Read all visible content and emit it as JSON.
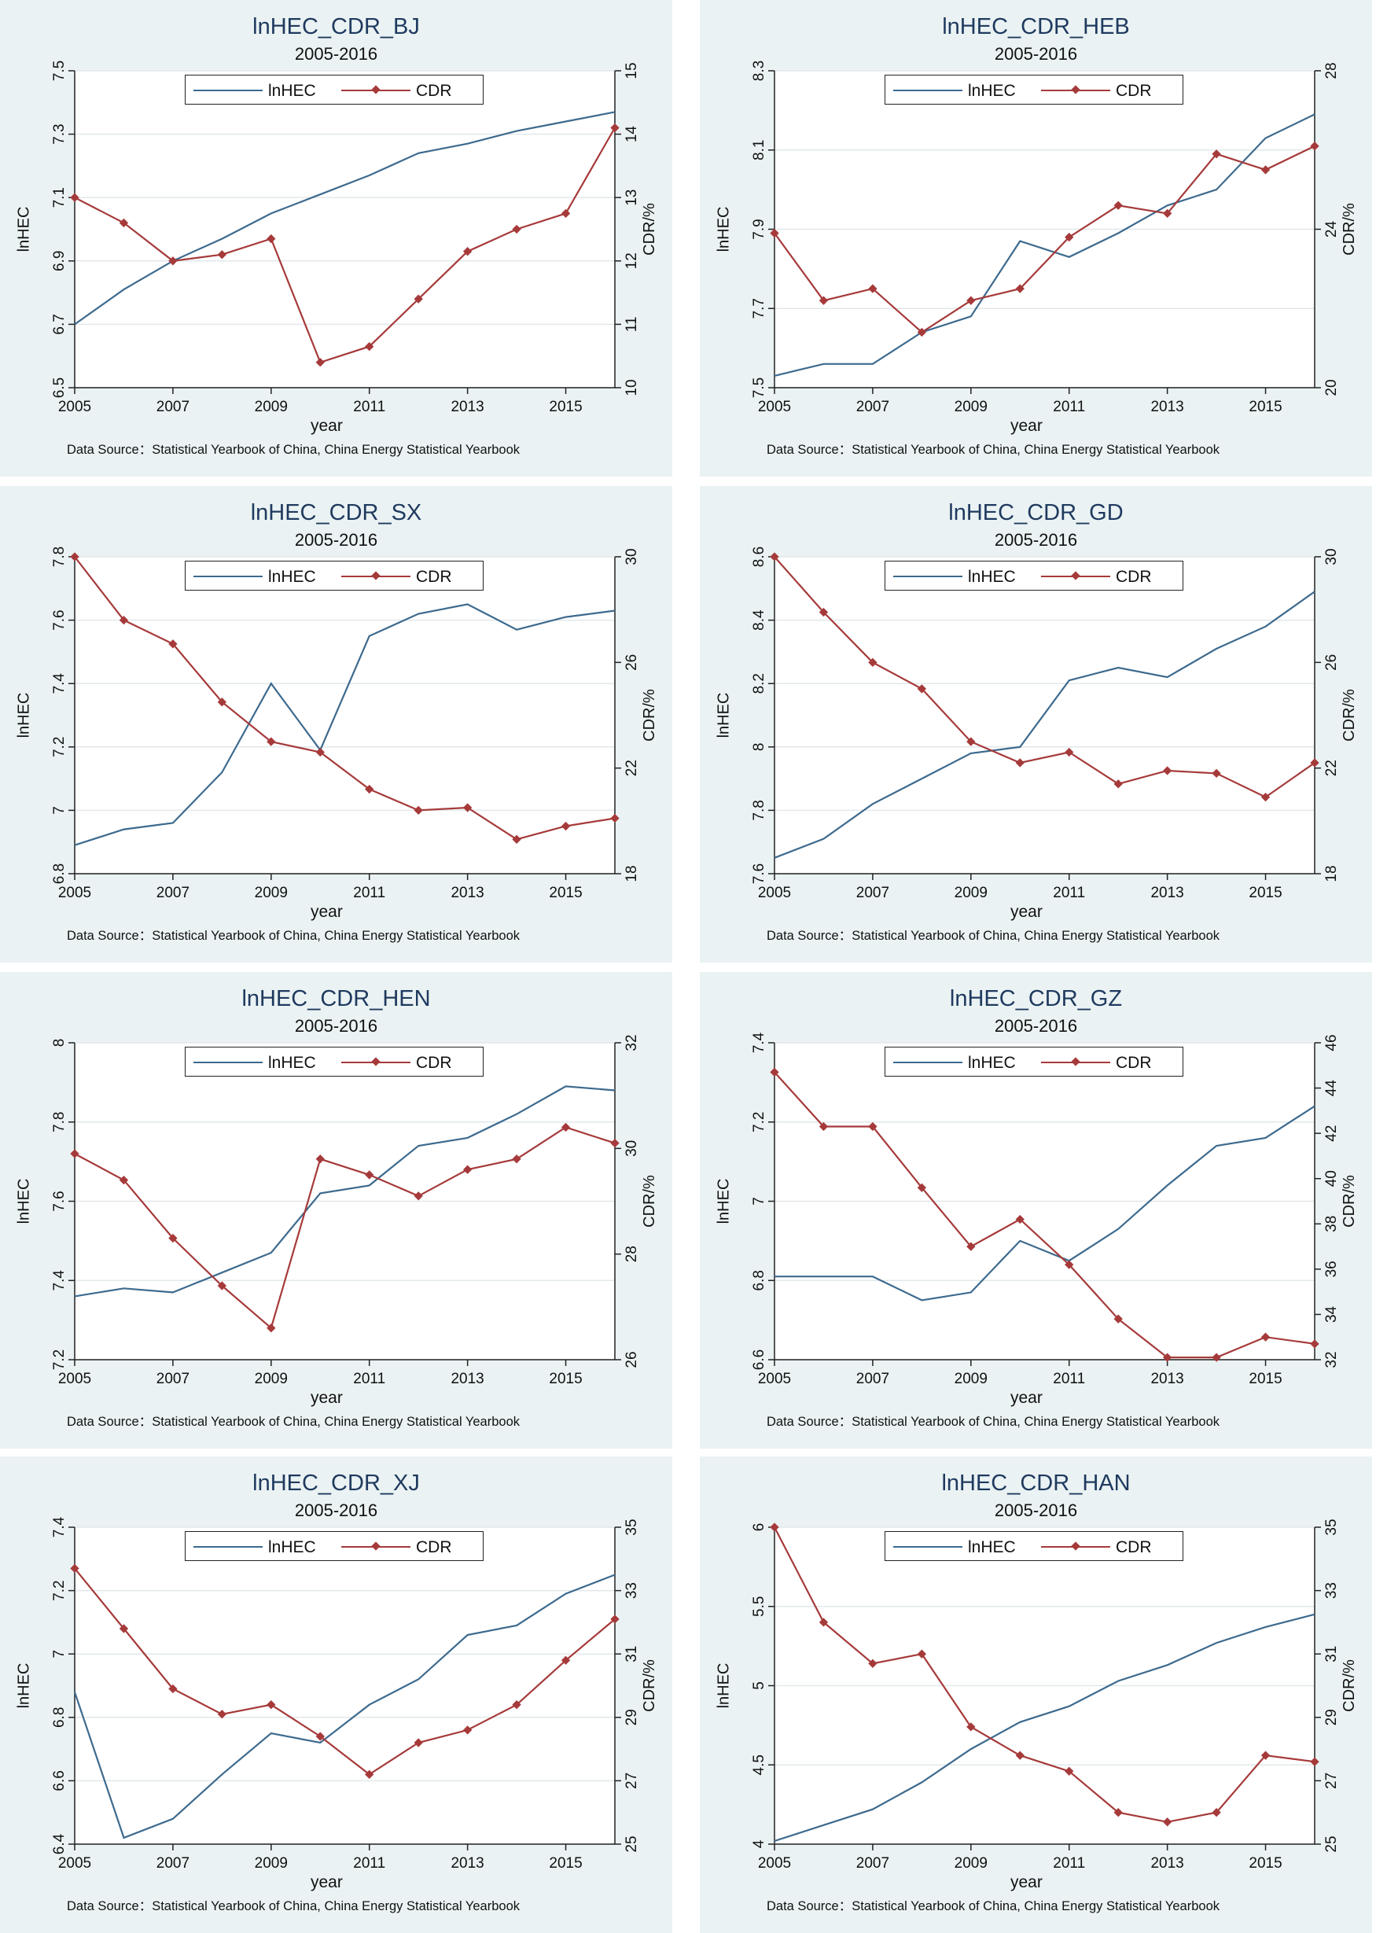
{
  "colors": {
    "panel_bg": "#eaf2f3",
    "lnhec": "#3d6a8e",
    "cdr": "#a63a3a",
    "grid": "#e2e8ea"
  },
  "chart_data": [
    {
      "type": "line",
      "title": "lnHEC_CDR_BJ",
      "subtitle": "2005-2016",
      "xlabel": "year",
      "ylabel_left": "lnHEC",
      "ylabel_right": "CDR/%",
      "source": "Data Source：Statistical Yearbook of China, China Energy Statistical Yearbook",
      "legend": [
        "lnHEC",
        "CDR"
      ],
      "x": [
        2005,
        2006,
        2007,
        2008,
        2009,
        2010,
        2011,
        2012,
        2013,
        2014,
        2015,
        2016
      ],
      "x_ticks": [
        "2005",
        "2007",
        "2009",
        "2011",
        "2013",
        "2015"
      ],
      "y_left_ticks": [
        "6.5",
        "6.7",
        "6.9",
        "7.1",
        "7.3",
        "7.5"
      ],
      "y_right_ticks": [
        "10",
        "11",
        "12",
        "13",
        "14",
        "15"
      ],
      "ylim_left": [
        6.5,
        7.5
      ],
      "ylim_right": [
        10,
        15
      ],
      "series": [
        {
          "name": "lnHEC",
          "axis": "left",
          "values": [
            6.7,
            6.81,
            6.9,
            6.97,
            7.05,
            7.11,
            7.17,
            7.24,
            7.27,
            7.31,
            7.34,
            7.37
          ]
        },
        {
          "name": "CDR",
          "axis": "right",
          "values": [
            13.0,
            12.6,
            12.0,
            12.1,
            12.35,
            10.4,
            10.65,
            11.4,
            12.15,
            12.5,
            12.75,
            14.1
          ]
        }
      ]
    },
    {
      "type": "line",
      "title": "lnHEC_CDR_HEB",
      "subtitle": "2005-2016",
      "xlabel": "year",
      "ylabel_left": "lnHEC",
      "ylabel_right": "CDR/%",
      "source": "Data Source：Statistical Yearbook of China, China Energy Statistical Yearbook",
      "legend": [
        "lnHEC",
        "CDR"
      ],
      "x": [
        2005,
        2006,
        2007,
        2008,
        2009,
        2010,
        2011,
        2012,
        2013,
        2014,
        2015,
        2016
      ],
      "x_ticks": [
        "2005",
        "2007",
        "2009",
        "2011",
        "2013",
        "2015"
      ],
      "y_left_ticks": [
        "7.5",
        "7.7",
        "7.9",
        "8.1",
        "8.3"
      ],
      "y_right_ticks": [
        "20",
        "24",
        "28"
      ],
      "ylim_left": [
        7.5,
        8.3
      ],
      "ylim_right": [
        20,
        28
      ],
      "series": [
        {
          "name": "lnHEC",
          "axis": "left",
          "values": [
            7.53,
            7.56,
            7.56,
            7.64,
            7.68,
            7.87,
            7.83,
            7.89,
            7.96,
            8.0,
            8.13,
            8.19
          ]
        },
        {
          "name": "CDR",
          "axis": "right",
          "values": [
            23.9,
            22.2,
            22.5,
            21.4,
            22.2,
            22.5,
            23.8,
            24.6,
            24.4,
            25.9,
            25.5,
            26.1
          ]
        }
      ]
    },
    {
      "type": "line",
      "title": "lnHEC_CDR_SX",
      "subtitle": "2005-2016",
      "xlabel": "year",
      "ylabel_left": "lnHEC",
      "ylabel_right": "CDR/%",
      "source": "Data Source：Statistical Yearbook of China, China Energy Statistical Yearbook",
      "legend": [
        "lnHEC",
        "CDR"
      ],
      "x": [
        2005,
        2006,
        2007,
        2008,
        2009,
        2010,
        2011,
        2012,
        2013,
        2014,
        2015,
        2016
      ],
      "x_ticks": [
        "2005",
        "2007",
        "2009",
        "2011",
        "2013",
        "2015"
      ],
      "y_left_ticks": [
        "6.8",
        "7",
        "7.2",
        "7.4",
        "7.6",
        "7.8"
      ],
      "y_right_ticks": [
        "18",
        "22",
        "26",
        "30"
      ],
      "ylim_left": [
        6.8,
        7.8
      ],
      "ylim_right": [
        18,
        30
      ],
      "series": [
        {
          "name": "lnHEC",
          "axis": "left",
          "values": [
            6.89,
            6.94,
            6.96,
            7.12,
            7.4,
            7.19,
            7.55,
            7.62,
            7.65,
            7.57,
            7.61,
            7.63
          ]
        },
        {
          "name": "CDR",
          "axis": "right",
          "values": [
            30.0,
            27.6,
            26.7,
            24.5,
            23.0,
            22.6,
            21.2,
            20.4,
            20.5,
            19.3,
            19.8,
            20.1
          ]
        }
      ]
    },
    {
      "type": "line",
      "title": "lnHEC_CDR_GD",
      "subtitle": "2005-2016",
      "xlabel": "year",
      "ylabel_left": "lnHEC",
      "ylabel_right": "CDR/%",
      "source": "Data Source：Statistical Yearbook of China, China Energy Statistical Yearbook",
      "legend": [
        "lnHEC",
        "CDR"
      ],
      "x": [
        2005,
        2006,
        2007,
        2008,
        2009,
        2010,
        2011,
        2012,
        2013,
        2014,
        2015,
        2016
      ],
      "x_ticks": [
        "2005",
        "2007",
        "2009",
        "2011",
        "2013",
        "2015"
      ],
      "y_left_ticks": [
        "7.6",
        "7.8",
        "8",
        "8.2",
        "8.4",
        "8.6"
      ],
      "y_right_ticks": [
        "18",
        "22",
        "26",
        "30"
      ],
      "ylim_left": [
        7.6,
        8.6
      ],
      "ylim_right": [
        18,
        30
      ],
      "series": [
        {
          "name": "lnHEC",
          "axis": "left",
          "values": [
            7.65,
            7.71,
            7.82,
            7.9,
            7.98,
            8.0,
            8.21,
            8.25,
            8.22,
            8.31,
            8.38,
            8.49
          ]
        },
        {
          "name": "CDR",
          "axis": "right",
          "values": [
            30.0,
            27.9,
            26.0,
            25.0,
            23.0,
            22.2,
            22.6,
            21.4,
            21.9,
            21.8,
            20.9,
            22.2
          ]
        }
      ]
    },
    {
      "type": "line",
      "title": "lnHEC_CDR_HEN",
      "subtitle": "2005-2016",
      "xlabel": "year",
      "ylabel_left": "lnHEC",
      "ylabel_right": "CDR/%",
      "source": "Data Source：Statistical Yearbook of China, China Energy Statistical Yearbook",
      "legend": [
        "lnHEC",
        "CDR"
      ],
      "x": [
        2005,
        2006,
        2007,
        2008,
        2009,
        2010,
        2011,
        2012,
        2013,
        2014,
        2015,
        2016
      ],
      "x_ticks": [
        "2005",
        "2007",
        "2009",
        "2011",
        "2013",
        "2015"
      ],
      "y_left_ticks": [
        "7.2",
        "7.4",
        "7.6",
        "7.8",
        "8"
      ],
      "y_right_ticks": [
        "26",
        "28",
        "30",
        "32"
      ],
      "ylim_left": [
        7.2,
        8.0
      ],
      "ylim_right": [
        26,
        32
      ],
      "series": [
        {
          "name": "lnHEC",
          "axis": "left",
          "values": [
            7.36,
            7.38,
            7.37,
            7.42,
            7.47,
            7.62,
            7.64,
            7.74,
            7.76,
            7.82,
            7.89,
            7.88
          ]
        },
        {
          "name": "CDR",
          "axis": "right",
          "values": [
            29.9,
            29.4,
            28.3,
            27.4,
            26.6,
            29.8,
            29.5,
            29.1,
            29.6,
            29.8,
            30.4,
            30.1
          ]
        }
      ]
    },
    {
      "type": "line",
      "title": "lnHEC_CDR_GZ",
      "subtitle": "2005-2016",
      "xlabel": "year",
      "ylabel_left": "lnHEC",
      "ylabel_right": "CDR/%",
      "source": "Data Source：Statistical Yearbook of China, China Energy Statistical Yearbook",
      "legend": [
        "lnHEC",
        "CDR"
      ],
      "x": [
        2005,
        2006,
        2007,
        2008,
        2009,
        2010,
        2011,
        2012,
        2013,
        2014,
        2015,
        2016
      ],
      "x_ticks": [
        "2005",
        "2007",
        "2009",
        "2011",
        "2013",
        "2015"
      ],
      "y_left_ticks": [
        "6.6",
        "6.8",
        "7",
        "7.2",
        "7.4"
      ],
      "y_right_ticks": [
        "32",
        "34",
        "36",
        "38",
        "40",
        "42",
        "44",
        "46"
      ],
      "ylim_left": [
        6.6,
        7.4
      ],
      "ylim_right": [
        32,
        46
      ],
      "series": [
        {
          "name": "lnHEC",
          "axis": "left",
          "values": [
            6.81,
            6.81,
            6.81,
            6.75,
            6.77,
            6.9,
            6.85,
            6.93,
            7.04,
            7.14,
            7.16,
            7.24
          ]
        },
        {
          "name": "CDR",
          "axis": "right",
          "values": [
            44.7,
            42.3,
            42.3,
            39.6,
            37.0,
            38.2,
            36.2,
            33.8,
            32.1,
            32.1,
            33.0,
            32.7
          ]
        }
      ]
    },
    {
      "type": "line",
      "title": "lnHEC_CDR_XJ",
      "subtitle": "2005-2016",
      "xlabel": "year",
      "ylabel_left": "lnHEC",
      "ylabel_right": "CDR/%",
      "source": "Data Source：Statistical Yearbook of China, China Energy Statistical Yearbook",
      "legend": [
        "lnHEC",
        "CDR"
      ],
      "x": [
        2005,
        2006,
        2007,
        2008,
        2009,
        2010,
        2011,
        2012,
        2013,
        2014,
        2015,
        2016
      ],
      "x_ticks": [
        "2005",
        "2007",
        "2009",
        "2011",
        "2013",
        "2015"
      ],
      "y_left_ticks": [
        "6.4",
        "6.6",
        "6.8",
        "7",
        "7.2",
        "7.4"
      ],
      "y_right_ticks": [
        "25",
        "27",
        "29",
        "31",
        "33",
        "35"
      ],
      "ylim_left": [
        6.4,
        7.4
      ],
      "ylim_right": [
        25,
        35
      ],
      "series": [
        {
          "name": "lnHEC",
          "axis": "left",
          "values": [
            6.88,
            6.42,
            6.48,
            6.62,
            6.75,
            6.72,
            6.84,
            6.92,
            7.06,
            7.09,
            7.19,
            7.25
          ]
        },
        {
          "name": "CDR",
          "axis": "right",
          "values": [
            33.7,
            31.8,
            29.9,
            29.1,
            29.4,
            28.4,
            27.2,
            28.2,
            28.6,
            29.4,
            30.8,
            32.1
          ]
        }
      ]
    },
    {
      "type": "line",
      "title": "lnHEC_CDR_HAN",
      "subtitle": "2005-2016",
      "xlabel": "year",
      "ylabel_left": "lnHEC",
      "ylabel_right": "CDR/%",
      "source": "Data Source：Statistical Yearbook of China, China Energy Statistical Yearbook",
      "legend": [
        "lnHEC",
        "CDR"
      ],
      "x": [
        2005,
        2006,
        2007,
        2008,
        2009,
        2010,
        2011,
        2012,
        2013,
        2014,
        2015,
        2016
      ],
      "x_ticks": [
        "2005",
        "2007",
        "2009",
        "2011",
        "2013",
        "2015"
      ],
      "y_left_ticks": [
        "4",
        "4.5",
        "5",
        "5.5",
        "6"
      ],
      "y_right_ticks": [
        "25",
        "27",
        "29",
        "31",
        "33",
        "35"
      ],
      "ylim_left": [
        4.0,
        6.0
      ],
      "ylim_right": [
        25,
        35
      ],
      "series": [
        {
          "name": "lnHEC",
          "axis": "left",
          "values": [
            4.02,
            4.12,
            4.22,
            4.39,
            4.6,
            4.77,
            4.87,
            5.03,
            5.13,
            5.27,
            5.37,
            5.45
          ]
        },
        {
          "name": "CDR",
          "axis": "right",
          "values": [
            35.0,
            32.0,
            30.7,
            31.0,
            28.7,
            27.8,
            27.3,
            26.0,
            25.7,
            26.0,
            27.8,
            27.6
          ]
        }
      ]
    }
  ]
}
